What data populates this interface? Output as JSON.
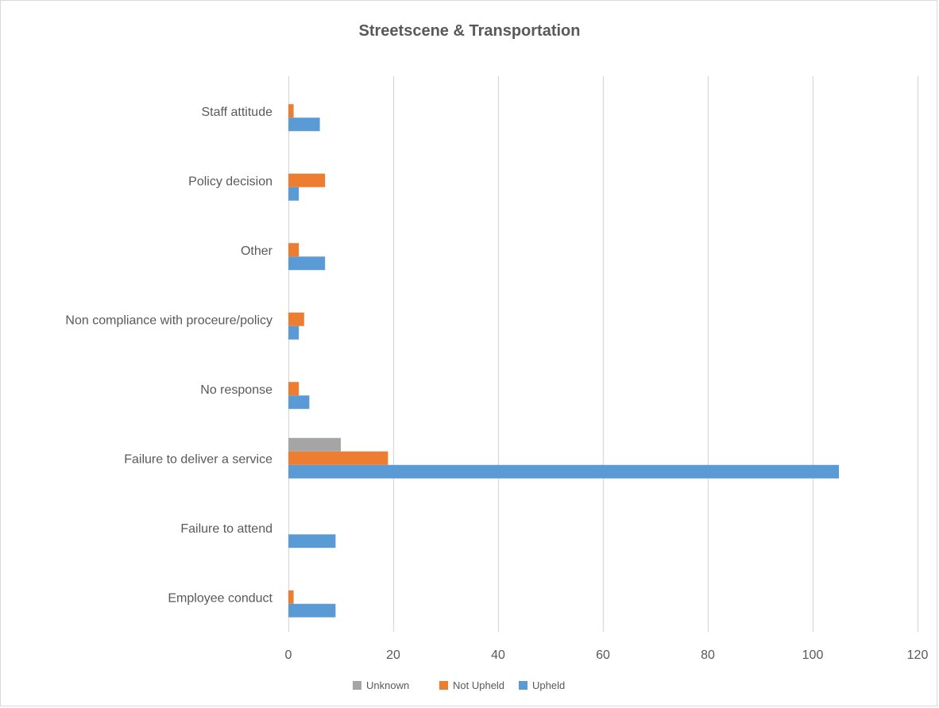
{
  "chart_data": {
    "type": "bar",
    "orientation": "horizontal",
    "title": "Streetscene & Transportation",
    "xlabel": "",
    "ylabel": "",
    "xlim": [
      0,
      120
    ],
    "x_ticks": [
      0,
      20,
      40,
      60,
      80,
      100,
      120
    ],
    "grid": true,
    "legend_position": "bottom",
    "categories": [
      "Staff attitude",
      "Policy decision",
      "Other",
      "Non compliance with proceure/policy",
      "No response",
      "Failure to deliver a service",
      "Failure to attend",
      "Employee conduct"
    ],
    "series": [
      {
        "name": "Unknown",
        "color": "#a5a5a5",
        "values": [
          0,
          0,
          0,
          0,
          0,
          10,
          0,
          0
        ]
      },
      {
        "name": "Not Upheld",
        "color": "#ed7d31",
        "values": [
          1,
          7,
          2,
          3,
          2,
          19,
          0,
          1
        ]
      },
      {
        "name": "Upheld",
        "color": "#5b9bd5",
        "values": [
          6,
          2,
          7,
          2,
          4,
          105,
          9,
          9
        ]
      }
    ]
  }
}
